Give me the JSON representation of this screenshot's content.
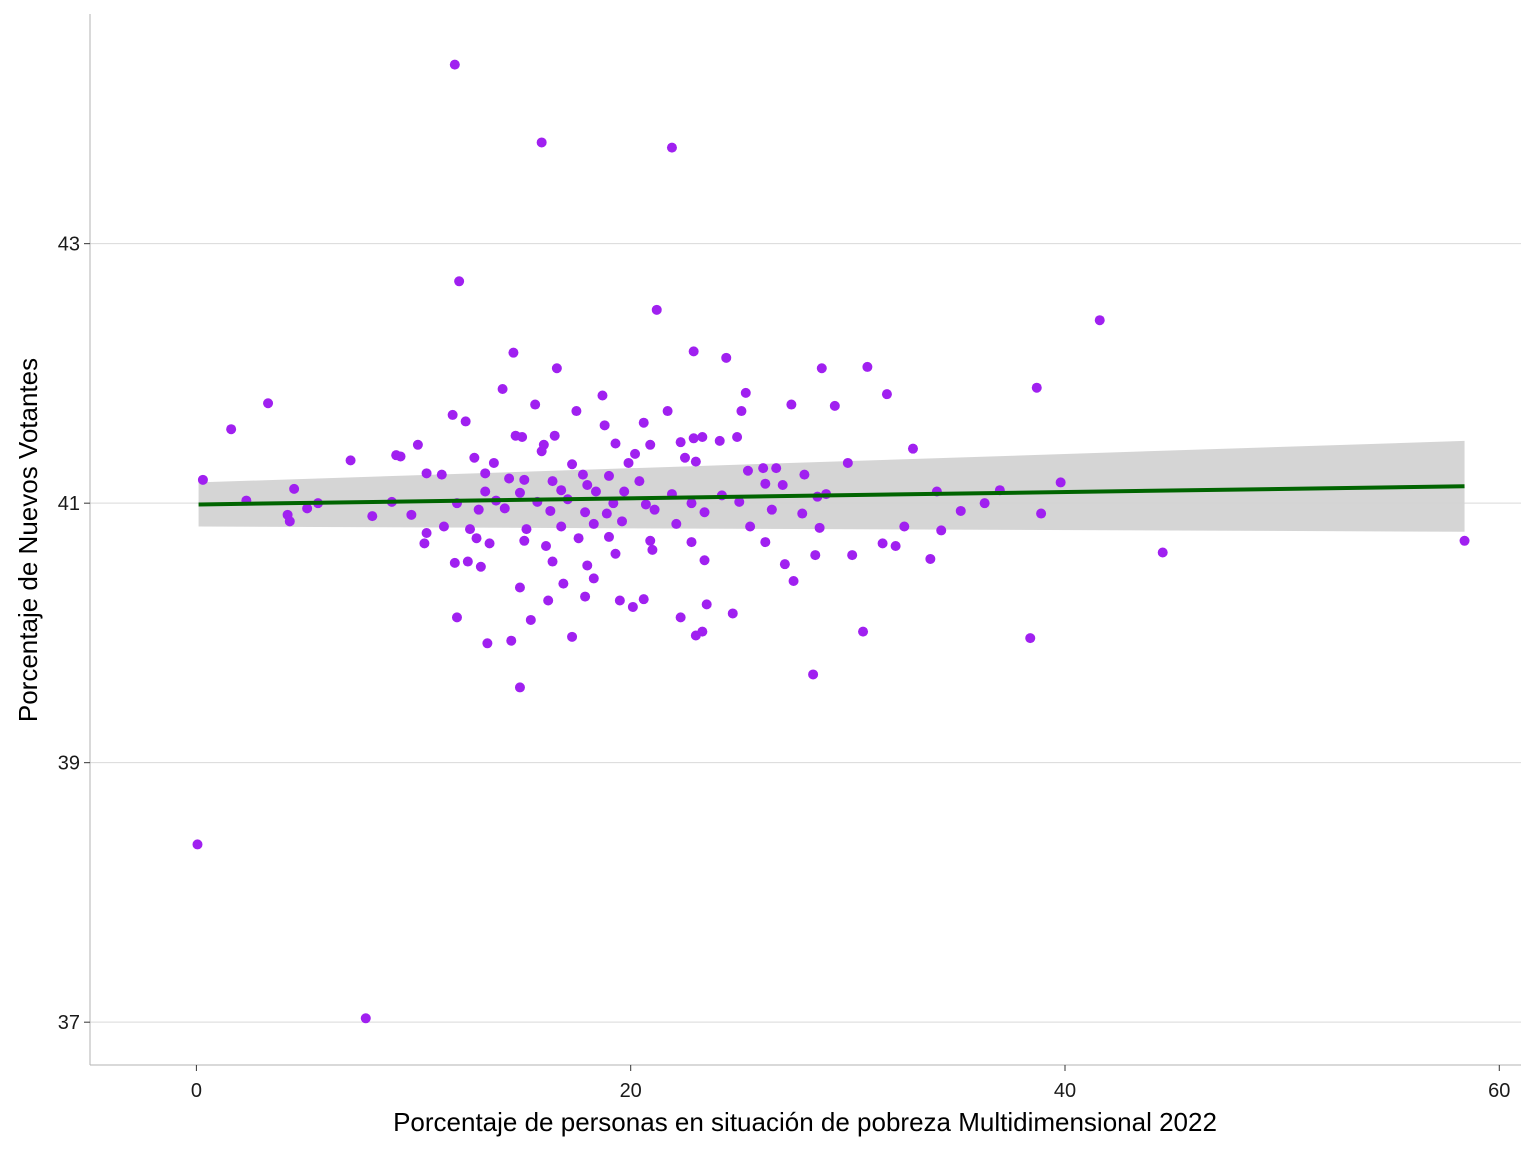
{
  "chart_data": {
    "type": "scatter",
    "title": "",
    "xlabel": "Porcentaje de personas en situación de pobreza Multidimensional 2022",
    "ylabel": "Porcentaje de Nuevos Votantes",
    "xlim": [
      -4.9,
      61.0
    ],
    "ylim": [
      36.67,
      44.77
    ],
    "x_ticks": [
      0,
      20,
      40,
      60
    ],
    "x_tick_labels": [
      "0",
      "20",
      "40",
      "60"
    ],
    "y_ticks": [
      37,
      39,
      41,
      43
    ],
    "y_tick_labels": [
      "37",
      "39",
      "41",
      "43"
    ],
    "grid": "horizontal major lines",
    "legend": "none",
    "colors": {
      "points": "#a020f0",
      "trend": "#006400",
      "band": "#d3d3d3",
      "grid": "#d9d9d9",
      "axis": "#b3b3b3"
    },
    "trend_line": {
      "method": "linear",
      "x": [
        0.1,
        58.4
      ],
      "y": [
        40.99,
        41.13
      ],
      "ci_low": [
        40.82,
        40.78
      ],
      "ci_high": [
        41.16,
        41.48
      ]
    },
    "points": [
      [
        0.05,
        38.37
      ],
      [
        7.8,
        37.03
      ],
      [
        11.9,
        44.38
      ],
      [
        15.9,
        43.78
      ],
      [
        21.9,
        43.74
      ],
      [
        12.1,
        42.71
      ],
      [
        21.2,
        42.49
      ],
      [
        41.6,
        42.41
      ],
      [
        14.6,
        42.16
      ],
      [
        22.9,
        42.17
      ],
      [
        24.4,
        42.12
      ],
      [
        16.6,
        42.04
      ],
      [
        30.9,
        42.05
      ],
      [
        28.8,
        42.04
      ],
      [
        38.7,
        41.89
      ],
      [
        14.1,
        41.88
      ],
      [
        18.7,
        41.83
      ],
      [
        25.3,
        41.85
      ],
      [
        31.8,
        41.84
      ],
      [
        3.3,
        41.77
      ],
      [
        15.6,
        41.76
      ],
      [
        27.4,
        41.76
      ],
      [
        29.4,
        41.75
      ],
      [
        21.7,
        41.71
      ],
      [
        17.5,
        41.71
      ],
      [
        25.1,
        41.71
      ],
      [
        11.8,
        41.68
      ],
      [
        12.4,
        41.63
      ],
      [
        20.6,
        41.62
      ],
      [
        1.6,
        41.57
      ],
      [
        18.8,
        41.6
      ],
      [
        15.0,
        41.51
      ],
      [
        14.7,
        41.52
      ],
      [
        16.5,
        41.52
      ],
      [
        23.3,
        41.51
      ],
      [
        22.9,
        41.5
      ],
      [
        22.3,
        41.47
      ],
      [
        24.1,
        41.48
      ],
      [
        24.9,
        41.51
      ],
      [
        10.2,
        41.45
      ],
      [
        16.0,
        41.45
      ],
      [
        19.3,
        41.46
      ],
      [
        20.9,
        41.45
      ],
      [
        33.0,
        41.42
      ],
      [
        15.9,
        41.4
      ],
      [
        9.2,
        41.37
      ],
      [
        9.4,
        41.36
      ],
      [
        12.8,
        41.35
      ],
      [
        20.2,
        41.38
      ],
      [
        22.5,
        41.35
      ],
      [
        7.1,
        41.33
      ],
      [
        13.7,
        41.31
      ],
      [
        17.3,
        41.3
      ],
      [
        19.9,
        41.31
      ],
      [
        23.0,
        41.32
      ],
      [
        30.0,
        41.31
      ],
      [
        26.1,
        41.27
      ],
      [
        26.7,
        41.27
      ],
      [
        10.6,
        41.23
      ],
      [
        11.3,
        41.22
      ],
      [
        13.3,
        41.23
      ],
      [
        17.8,
        41.22
      ],
      [
        19.0,
        41.21
      ],
      [
        25.4,
        41.25
      ],
      [
        28.0,
        41.22
      ],
      [
        0.3,
        41.18
      ],
      [
        14.4,
        41.19
      ],
      [
        15.1,
        41.18
      ],
      [
        16.4,
        41.17
      ],
      [
        18.0,
        41.14
      ],
      [
        20.4,
        41.17
      ],
      [
        26.2,
        41.15
      ],
      [
        27.0,
        41.14
      ],
      [
        39.8,
        41.16
      ],
      [
        4.5,
        41.11
      ],
      [
        13.3,
        41.09
      ],
      [
        14.9,
        41.08
      ],
      [
        16.8,
        41.1
      ],
      [
        18.4,
        41.09
      ],
      [
        19.7,
        41.09
      ],
      [
        21.9,
        41.07
      ],
      [
        24.2,
        41.06
      ],
      [
        29.0,
        41.07
      ],
      [
        34.1,
        41.09
      ],
      [
        37.0,
        41.1
      ],
      [
        2.3,
        41.02
      ],
      [
        5.6,
        41.0
      ],
      [
        9.0,
        41.01
      ],
      [
        12.0,
        41.0
      ],
      [
        13.8,
        41.02
      ],
      [
        15.7,
        41.01
      ],
      [
        17.1,
        41.03
      ],
      [
        19.2,
        41.0
      ],
      [
        20.7,
        40.99
      ],
      [
        22.8,
        41.0
      ],
      [
        25.0,
        41.01
      ],
      [
        28.6,
        41.05
      ],
      [
        36.3,
        41.0
      ],
      [
        4.2,
        40.91
      ],
      [
        4.3,
        40.86
      ],
      [
        5.1,
        40.96
      ],
      [
        8.1,
        40.9
      ],
      [
        9.9,
        40.91
      ],
      [
        13.0,
        40.95
      ],
      [
        14.2,
        40.96
      ],
      [
        16.3,
        40.94
      ],
      [
        17.9,
        40.93
      ],
      [
        18.9,
        40.92
      ],
      [
        21.1,
        40.95
      ],
      [
        23.4,
        40.93
      ],
      [
        26.5,
        40.95
      ],
      [
        27.9,
        40.92
      ],
      [
        35.2,
        40.94
      ],
      [
        38.9,
        40.92
      ],
      [
        10.6,
        40.77
      ],
      [
        11.4,
        40.82
      ],
      [
        12.6,
        40.8
      ],
      [
        15.2,
        40.8
      ],
      [
        16.8,
        40.82
      ],
      [
        18.3,
        40.84
      ],
      [
        19.6,
        40.86
      ],
      [
        22.1,
        40.84
      ],
      [
        25.5,
        40.82
      ],
      [
        28.7,
        40.81
      ],
      [
        32.6,
        40.82
      ],
      [
        34.3,
        40.79
      ],
      [
        10.5,
        40.69
      ],
      [
        12.9,
        40.73
      ],
      [
        13.5,
        40.69
      ],
      [
        15.1,
        40.71
      ],
      [
        16.1,
        40.67
      ],
      [
        17.6,
        40.73
      ],
      [
        19.0,
        40.74
      ],
      [
        20.9,
        40.71
      ],
      [
        22.8,
        40.7
      ],
      [
        26.2,
        40.7
      ],
      [
        31.6,
        40.69
      ],
      [
        32.2,
        40.67
      ],
      [
        58.4,
        40.71
      ],
      [
        11.9,
        40.54
      ],
      [
        12.5,
        40.55
      ],
      [
        13.1,
        40.51
      ],
      [
        16.4,
        40.55
      ],
      [
        18.0,
        40.52
      ],
      [
        19.3,
        40.61
      ],
      [
        21.0,
        40.64
      ],
      [
        23.4,
        40.56
      ],
      [
        27.1,
        40.53
      ],
      [
        28.5,
        40.6
      ],
      [
        30.2,
        40.6
      ],
      [
        33.8,
        40.57
      ],
      [
        44.5,
        40.62
      ],
      [
        14.9,
        40.35
      ],
      [
        16.9,
        40.38
      ],
      [
        18.3,
        40.42
      ],
      [
        27.5,
        40.4
      ],
      [
        16.2,
        40.25
      ],
      [
        17.9,
        40.28
      ],
      [
        19.5,
        40.25
      ],
      [
        20.1,
        40.2
      ],
      [
        20.6,
        40.26
      ],
      [
        23.5,
        40.22
      ],
      [
        12.0,
        40.12
      ],
      [
        15.4,
        40.1
      ],
      [
        22.3,
        40.12
      ],
      [
        24.7,
        40.15
      ],
      [
        17.3,
        39.97
      ],
      [
        23.3,
        40.01
      ],
      [
        30.7,
        40.01
      ],
      [
        38.4,
        39.96
      ],
      [
        13.4,
        39.92
      ],
      [
        14.5,
        39.94
      ],
      [
        23.0,
        39.98
      ],
      [
        28.4,
        39.68
      ],
      [
        14.9,
        39.58
      ]
    ]
  }
}
